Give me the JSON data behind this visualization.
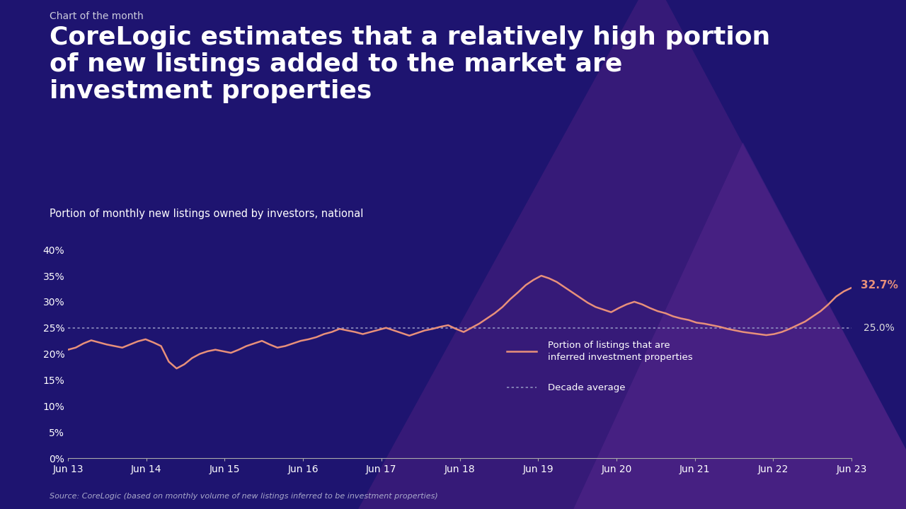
{
  "chart_of_month": "Chart of the month",
  "title_line1": "CoreLogic estimates that a relatively high portion",
  "title_line2": "of new listings added to the market are",
  "title_line3": "investment properties",
  "subtitle": "Portion of monthly new listings owned by investors, national",
  "source": "Source: CoreLogic (based on monthly volume of new listings inferred to be investment properties)",
  "bg_color": "#1e1470",
  "line_color": "#e8907a",
  "avg_line_color": "#9090c0",
  "text_color": "#ffffff",
  "decade_avg": 0.25,
  "final_value": 0.327,
  "x_labels": [
    "Jun 13",
    "Jun 14",
    "Jun 15",
    "Jun 16",
    "Jun 17",
    "Jun 18",
    "Jun 19",
    "Jun 20",
    "Jun 21",
    "Jun 22",
    "Jun 23"
  ],
  "y_ticks": [
    0.0,
    0.05,
    0.1,
    0.15,
    0.2,
    0.25,
    0.3,
    0.35,
    0.4
  ],
  "series": [
    0.208,
    0.212,
    0.22,
    0.226,
    0.222,
    0.218,
    0.215,
    0.212,
    0.218,
    0.224,
    0.228,
    0.222,
    0.215,
    0.185,
    0.172,
    0.18,
    0.192,
    0.2,
    0.205,
    0.208,
    0.205,
    0.202,
    0.208,
    0.215,
    0.22,
    0.225,
    0.218,
    0.212,
    0.215,
    0.22,
    0.225,
    0.228,
    0.232,
    0.238,
    0.242,
    0.248,
    0.245,
    0.242,
    0.238,
    0.242,
    0.246,
    0.25,
    0.245,
    0.24,
    0.235,
    0.24,
    0.245,
    0.248,
    0.252,
    0.255,
    0.248,
    0.242,
    0.25,
    0.258,
    0.268,
    0.278,
    0.29,
    0.305,
    0.318,
    0.332,
    0.342,
    0.35,
    0.345,
    0.338,
    0.328,
    0.318,
    0.308,
    0.298,
    0.29,
    0.285,
    0.28,
    0.288,
    0.295,
    0.3,
    0.295,
    0.288,
    0.282,
    0.278,
    0.272,
    0.268,
    0.265,
    0.26,
    0.258,
    0.255,
    0.252,
    0.248,
    0.245,
    0.242,
    0.24,
    0.238,
    0.236,
    0.238,
    0.242,
    0.248,
    0.255,
    0.262,
    0.272,
    0.282,
    0.295,
    0.31,
    0.32,
    0.327
  ],
  "legend_line_label": "Portion of listings that are\ninferred investment properties",
  "legend_avg_label": "Decade average",
  "tri1_color": "#4a2080",
  "tri2_color": "#5a2890",
  "tri1_alpha": 0.55,
  "tri2_alpha": 0.45
}
